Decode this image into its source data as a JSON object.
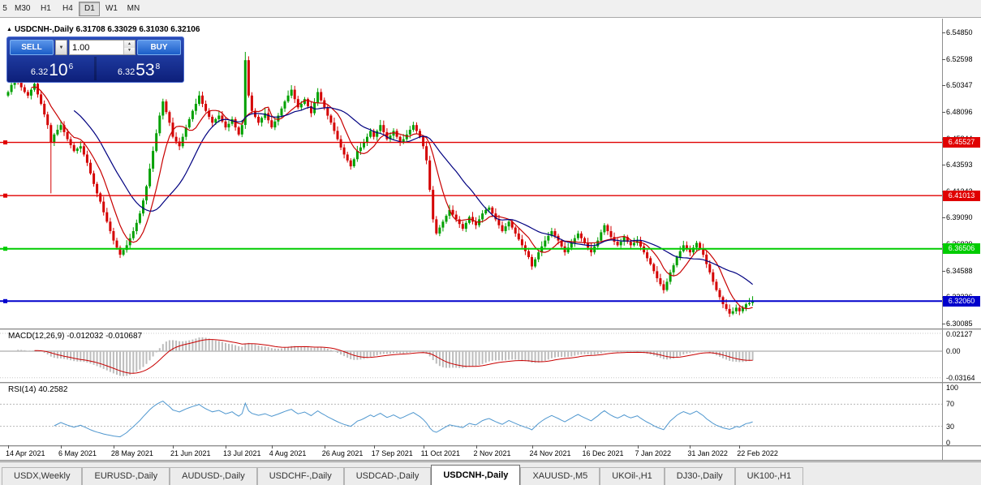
{
  "toolbar": {
    "timeframe_buttons": [
      "5",
      "M30",
      "H1",
      "H4",
      "D1",
      "W1",
      "MN"
    ],
    "active_timeframe": "D1"
  },
  "chart_header": {
    "marker": "▲",
    "text": "USDCNH-,Daily 6.31708 6.33029 6.31030 6.32106"
  },
  "trade_widget": {
    "sell_label": "SELL",
    "buy_label": "BUY",
    "volume_value": "1.00",
    "sell_price": {
      "prefix": "6.32",
      "big": "10",
      "sup": "6"
    },
    "buy_price": {
      "prefix": "6.32",
      "big": "53",
      "sup": "8"
    }
  },
  "price_axis_labels": [
    "6.54850",
    "6.52598",
    "6.50347",
    "6.48096",
    "6.45844",
    "6.43593",
    "6.41342",
    "6.39090",
    "6.36839",
    "6.34588",
    "6.32336",
    "6.30085"
  ],
  "levels": [
    {
      "label": "6.45527",
      "price": 6.45527,
      "color": "#e00000",
      "width": 1.4,
      "name": "resistance-line-upper"
    },
    {
      "label": "6.41013",
      "price": 6.41013,
      "color": "#e00000",
      "width": 1.4,
      "name": "resistance-line-lower"
    },
    {
      "label": "6.36506",
      "price": 6.36506,
      "color": "#00cc00",
      "width": 2,
      "name": "support-line-green"
    },
    {
      "label": "6.32060",
      "price": 6.3206,
      "color": "#0000cc",
      "width": 2,
      "name": "support-line-blue"
    }
  ],
  "macd_panel": {
    "header": "MACD(12,26,9) -0.012032 -0.010687",
    "axis": [
      {
        "label": "0.02127",
        "value": 0.02127
      },
      {
        "label": "0.00",
        "value": 0
      },
      {
        "label": "-0.03164",
        "value": -0.03164
      }
    ]
  },
  "rsi_panel": {
    "header": "RSI(14) 40.2582",
    "axis": [
      {
        "label": "100",
        "value": 100
      },
      {
        "label": "70",
        "value": 70
      },
      {
        "label": "30",
        "value": 30
      },
      {
        "label": "0",
        "value": 0
      }
    ],
    "dashed_levels": [
      70,
      30
    ]
  },
  "time_axis": [
    {
      "label": "14 Apr 2021",
      "index": 0
    },
    {
      "label": "6 May 2021",
      "index": 16
    },
    {
      "label": "28 May 2021",
      "index": 32
    },
    {
      "label": "21 Jun 2021",
      "index": 50
    },
    {
      "label": "13 Jul 2021",
      "index": 66
    },
    {
      "label": "4 Aug 2021",
      "index": 80
    },
    {
      "label": "26 Aug 2021",
      "index": 96
    },
    {
      "label": "17 Sep 2021",
      "index": 111
    },
    {
      "label": "11 Oct 2021",
      "index": 126
    },
    {
      "label": "2 Nov 2021",
      "index": 142
    },
    {
      "label": "24 Nov 2021",
      "index": 159
    },
    {
      "label": "16 Dec 2021",
      "index": 175
    },
    {
      "label": "7 Jan 2022",
      "index": 191
    },
    {
      "label": "31 Jan 2022",
      "index": 207
    },
    {
      "label": "22 Feb 2022",
      "index": 222
    }
  ],
  "tabs": [
    "USDX,Weekly",
    "EURUSD-,Daily",
    "AUDUSD-,Daily",
    "USDCHF-,Daily",
    "USDCAD-,Daily",
    "USDCNH-,Daily",
    "XAUUSD-,M5",
    "UKOil-,H1",
    "DJ30-,Daily",
    "UK100-,H1"
  ],
  "active_tab": "USDCNH-,Daily",
  "chart_data": {
    "type": "candlestick",
    "symbol": "USDCNH-",
    "timeframe": "Daily",
    "ohlc": {
      "open": 6.31708,
      "high": 6.33029,
      "low": 6.3103,
      "close": 6.32106
    },
    "visible_price_range": [
      6.2974,
      6.5568
    ],
    "up_color": "#00a000",
    "down_color": "#d40000",
    "closes": [
      6.498,
      6.504,
      6.51,
      6.506,
      6.502,
      6.498,
      6.495,
      6.5,
      6.505,
      6.496,
      6.488,
      6.479,
      6.47,
      6.455,
      6.462,
      6.466,
      6.47,
      6.464,
      6.458,
      6.453,
      6.448,
      6.45,
      6.452,
      6.445,
      6.438,
      6.429,
      6.42,
      6.412,
      6.405,
      6.396,
      6.388,
      6.38,
      6.372,
      6.366,
      6.36,
      6.364,
      6.368,
      6.374,
      6.38,
      6.387,
      6.395,
      6.406,
      6.418,
      6.433,
      6.448,
      6.463,
      6.478,
      6.49,
      6.481,
      6.472,
      6.46,
      6.456,
      6.452,
      6.46,
      6.468,
      6.475,
      6.482,
      6.488,
      6.495,
      6.488,
      6.482,
      6.477,
      6.472,
      6.475,
      6.478,
      6.473,
      6.468,
      6.471,
      6.475,
      6.468,
      6.462,
      6.47,
      6.525,
      6.495,
      6.482,
      6.477,
      6.472,
      6.476,
      6.48,
      6.474,
      6.468,
      6.473,
      6.478,
      6.484,
      6.49,
      6.495,
      6.5,
      6.492,
      6.485,
      6.488,
      6.492,
      6.486,
      6.48,
      6.489,
      6.498,
      6.491,
      6.485,
      6.478,
      6.472,
      6.465,
      6.458,
      6.451,
      6.445,
      6.44,
      6.435,
      6.441,
      6.448,
      6.451,
      6.455,
      6.46,
      6.465,
      6.46,
      6.465,
      6.47,
      6.464,
      6.458,
      6.461,
      6.465,
      6.46,
      6.455,
      6.458,
      6.462,
      6.466,
      6.47,
      6.465,
      6.46,
      6.452,
      6.44,
      6.415,
      6.39,
      6.378,
      6.383,
      6.388,
      6.393,
      6.398,
      6.394,
      6.39,
      6.386,
      6.382,
      6.387,
      6.392,
      6.388,
      6.385,
      6.39,
      6.395,
      6.398,
      6.4,
      6.395,
      6.39,
      6.385,
      6.38,
      6.384,
      6.388,
      6.383,
      6.378,
      6.373,
      6.368,
      6.363,
      6.358,
      6.35,
      6.356,
      6.362,
      6.367,
      6.372,
      6.376,
      6.38,
      6.376,
      6.372,
      6.367,
      6.362,
      6.366,
      6.37,
      6.374,
      6.378,
      6.374,
      6.37,
      6.366,
      6.362,
      6.367,
      6.372,
      6.379,
      6.385,
      6.38,
      6.375,
      6.371,
      6.368,
      6.371,
      6.375,
      6.371,
      6.368,
      6.37,
      6.372,
      6.367,
      6.362,
      6.357,
      6.352,
      6.346,
      6.34,
      6.335,
      6.33,
      6.337,
      6.345,
      6.351,
      6.358,
      6.363,
      6.368,
      6.365,
      6.362,
      6.366,
      6.37,
      6.365,
      6.36,
      6.352,
      6.345,
      6.337,
      6.33,
      6.324,
      6.318,
      6.314,
      6.31,
      6.312,
      6.315,
      6.312,
      6.315,
      6.318,
      6.319,
      6.321
    ],
    "wick_overrides": {
      "13": {
        "low": 6.412
      },
      "72": {
        "high": 6.532
      }
    },
    "overlays": [
      {
        "name": "ma-fast",
        "period": 8,
        "color": "#c80000"
      },
      {
        "name": "ma-slow",
        "period": 21,
        "color": "#000080"
      }
    ],
    "macd": {
      "fast": 12,
      "slow": 26,
      "signal": 9,
      "main_value": -0.012032,
      "signal_value": -0.010687,
      "histogram_color": "#bdbdbd",
      "signal_color": "#c80000"
    },
    "rsi": {
      "period": 14,
      "value": 40.2582,
      "color": "#4f97cf"
    }
  }
}
